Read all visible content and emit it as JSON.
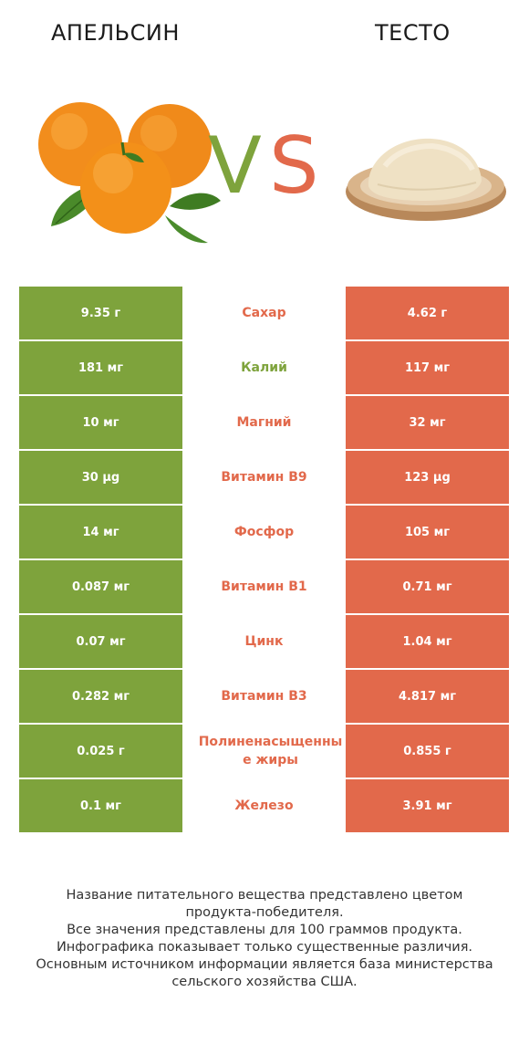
{
  "header": {
    "left_name": "АПЕЛЬСИН",
    "right_name": "ТЕСТО",
    "vs_v": "V",
    "vs_s": "S"
  },
  "colors": {
    "left": "#7ea33c",
    "right": "#e2694b",
    "neutral": "#ffffff"
  },
  "chart_data": {
    "type": "table",
    "columns": [
      "АПЕЛЬСИН",
      "",
      "ТЕСТО"
    ],
    "rows": [
      {
        "nutrient": "Сахар",
        "left": "9.35 г",
        "right": "4.62 г",
        "winner": "right"
      },
      {
        "nutrient": "Калий",
        "left": "181 мг",
        "right": "117 мг",
        "winner": "left"
      },
      {
        "nutrient": "Магний",
        "left": "10 мг",
        "right": "32 мг",
        "winner": "right"
      },
      {
        "nutrient": "Витамин B9",
        "left": "30 µg",
        "right": "123 µg",
        "winner": "right"
      },
      {
        "nutrient": "Фосфор",
        "left": "14 мг",
        "right": "105 мг",
        "winner": "right"
      },
      {
        "nutrient": "Витамин B1",
        "left": "0.087 мг",
        "right": "0.71 мг",
        "winner": "right"
      },
      {
        "nutrient": "Цинк",
        "left": "0.07 мг",
        "right": "1.04 мг",
        "winner": "right"
      },
      {
        "nutrient": "Витамин B3",
        "left": "0.282 мг",
        "right": "4.817 мг",
        "winner": "right"
      },
      {
        "nutrient": "Полиненасыщенные жиры",
        "left": "0.025 г",
        "right": "0.855 г",
        "winner": "right"
      },
      {
        "nutrient": "Железо",
        "left": "0.1 мг",
        "right": "3.91 мг",
        "winner": "right"
      }
    ]
  },
  "footer": {
    "line1": "Название питательного вещества представлено цветом",
    "line2": "продукта-победителя.",
    "line3": "Все значения представлены для 100 граммов продукта.",
    "line4": "Инфографика показывает только существенные различия.",
    "line5": "Основным источником информации является база министерства",
    "line6": "сельского хозяйства США."
  }
}
